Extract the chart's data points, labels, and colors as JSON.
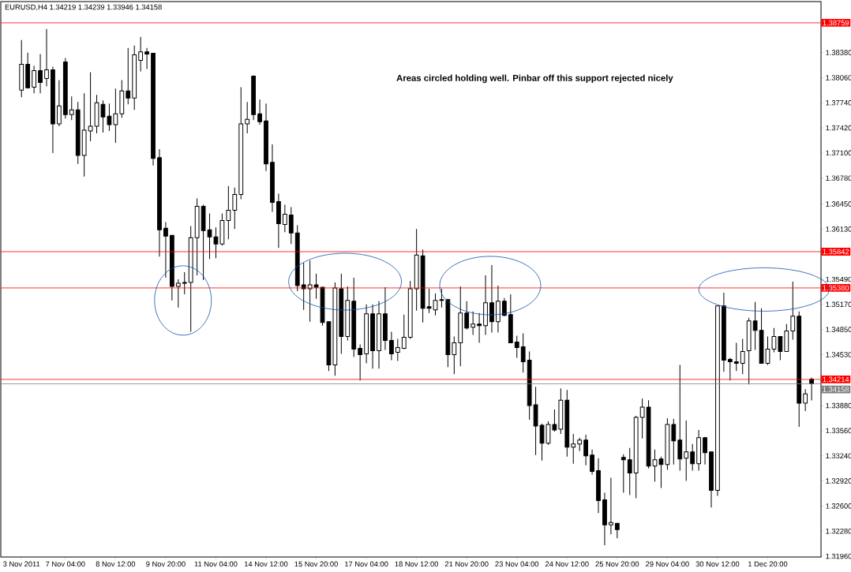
{
  "chart_data": {
    "type": "candlestick",
    "title": "EURUSD,H4  1.34219 1.34239 1.33946 1.34158",
    "annotations": [
      "Areas circled holding well.  Pinbar off this support rejected nicely"
    ],
    "color": "#000000",
    "categories": [
      "3 Nov 2011",
      null,
      null,
      null,
      null,
      null,
      null,
      "7 Nov 04:00",
      null,
      null,
      null,
      null,
      null,
      null,
      null,
      "8 Nov 12:00",
      null,
      null,
      null,
      null,
      null,
      null,
      null,
      "9 Nov 20:00",
      null,
      null,
      null,
      null,
      null,
      null,
      null,
      "11 Nov 04:00",
      null,
      null,
      null,
      null,
      null,
      null,
      null,
      "14 Nov 12:00",
      null,
      null,
      null,
      null,
      null,
      null,
      null,
      "15 Nov 20:00",
      null,
      null,
      null,
      null,
      null,
      null,
      null,
      "17 Nov 04:00",
      null,
      null,
      null,
      null,
      null,
      null,
      null,
      "18 Nov 12:00",
      null,
      null,
      null,
      null,
      null,
      null,
      null,
      "21 Nov 20:00",
      null,
      null,
      null,
      null,
      null,
      null,
      null,
      "23 Nov 04:00",
      null,
      null,
      null,
      null,
      null,
      null,
      null,
      "24 Nov 12:00",
      null,
      null,
      null,
      null,
      null,
      null,
      null,
      "25 Nov 20:00",
      null,
      null,
      null,
      null,
      null,
      null,
      null,
      "29 Nov 04:00",
      null,
      null,
      null,
      null,
      null,
      null,
      null,
      "30 Nov 12:00",
      null,
      null,
      null,
      null,
      null,
      null,
      null,
      "1 Dec 20:00",
      null,
      null,
      null,
      null,
      null,
      null,
      null
    ],
    "ohlc": [
      [
        1.379,
        1.3854,
        1.3781,
        1.3823
      ],
      [
        1.3823,
        1.3838,
        1.3792,
        1.3793
      ],
      [
        1.3794,
        1.3821,
        1.3786,
        1.3815
      ],
      [
        1.3815,
        1.3836,
        1.3786,
        1.38
      ],
      [
        1.3805,
        1.3868,
        1.3795,
        1.3816
      ],
      [
        1.3816,
        1.382,
        1.371,
        1.3747
      ],
      [
        1.3747,
        1.3803,
        1.3744,
        1.377
      ],
      [
        1.3826,
        1.3831,
        1.3754,
        1.3759
      ],
      [
        1.3759,
        1.3782,
        1.3752,
        1.3765
      ],
      [
        1.3765,
        1.3775,
        1.3696,
        1.3707
      ],
      [
        1.3707,
        1.3786,
        1.368,
        1.3739
      ],
      [
        1.3738,
        1.3813,
        1.3725,
        1.3744
      ],
      [
        1.3744,
        1.3784,
        1.3735,
        1.3774
      ],
      [
        1.3772,
        1.3777,
        1.3736,
        1.3756
      ],
      [
        1.3757,
        1.3773,
        1.3738,
        1.3746
      ],
      [
        1.3746,
        1.3792,
        1.3723,
        1.376
      ],
      [
        1.376,
        1.3803,
        1.3755,
        1.3789
      ],
      [
        1.3789,
        1.3844,
        1.3772,
        1.378
      ],
      [
        1.378,
        1.3847,
        1.3765,
        1.3835
      ],
      [
        1.3828,
        1.3858,
        1.3814,
        1.3839
      ],
      [
        1.3839,
        1.3844,
        1.3817,
        1.3836
      ],
      [
        1.3837,
        1.3837,
        1.3694,
        1.3703
      ],
      [
        1.3704,
        1.3715,
        1.3578,
        1.3612
      ],
      [
        1.3614,
        1.3622,
        1.3551,
        1.3604
      ],
      [
        1.3605,
        1.3605,
        1.3522,
        1.354
      ],
      [
        1.354,
        1.3549,
        1.3513,
        1.3544
      ],
      [
        1.3545,
        1.3558,
        1.353,
        1.3544
      ],
      [
        1.3545,
        1.3617,
        1.3482,
        1.3602
      ],
      [
        1.3602,
        1.3652,
        1.3554,
        1.3642
      ],
      [
        1.3642,
        1.3644,
        1.3548,
        1.3611
      ],
      [
        1.3612,
        1.3633,
        1.3575,
        1.3603
      ],
      [
        1.3603,
        1.3615,
        1.3576,
        1.3594
      ],
      [
        1.3594,
        1.3633,
        1.3592,
        1.3624
      ],
      [
        1.3624,
        1.3668,
        1.36,
        1.3637
      ],
      [
        1.3637,
        1.3666,
        1.3613,
        1.3657
      ],
      [
        1.3657,
        1.3794,
        1.3651,
        1.3747
      ],
      [
        1.3747,
        1.3775,
        1.3735,
        1.3753
      ],
      [
        1.3808,
        1.3809,
        1.3752,
        1.3759
      ],
      [
        1.376,
        1.3778,
        1.3746,
        1.375
      ],
      [
        1.3751,
        1.3773,
        1.3687,
        1.3696
      ],
      [
        1.3698,
        1.3721,
        1.3635,
        1.3647
      ],
      [
        1.3648,
        1.3658,
        1.3589,
        1.362
      ],
      [
        1.3619,
        1.3644,
        1.3609,
        1.3632
      ],
      [
        1.3631,
        1.3641,
        1.3594,
        1.3608
      ],
      [
        1.3608,
        1.3618,
        1.3534,
        1.3541
      ],
      [
        1.3542,
        1.357,
        1.351,
        1.3537
      ],
      [
        1.3537,
        1.3573,
        1.3495,
        1.3542
      ],
      [
        1.3542,
        1.3556,
        1.3524,
        1.3539
      ],
      [
        1.3539,
        1.3539,
        1.349,
        1.3494
      ],
      [
        1.3495,
        1.3495,
        1.3432,
        1.344
      ],
      [
        1.344,
        1.3545,
        1.3426,
        1.3538
      ],
      [
        1.3537,
        1.3556,
        1.3454,
        1.3476
      ],
      [
        1.3476,
        1.354,
        1.3471,
        1.3522
      ],
      [
        1.3521,
        1.3551,
        1.345,
        1.346
      ],
      [
        1.3461,
        1.3466,
        1.342,
        1.3453
      ],
      [
        1.3454,
        1.3517,
        1.3442,
        1.3505
      ],
      [
        1.3505,
        1.3517,
        1.3435,
        1.3458
      ],
      [
        1.3458,
        1.3521,
        1.3435,
        1.3505
      ],
      [
        1.3505,
        1.3539,
        1.3459,
        1.3471
      ],
      [
        1.3471,
        1.3482,
        1.3446,
        1.3454
      ],
      [
        1.3456,
        1.3473,
        1.3445,
        1.3462
      ],
      [
        1.3461,
        1.3504,
        1.346,
        1.3475
      ],
      [
        1.3475,
        1.3547,
        1.3473,
        1.3537
      ],
      [
        1.3537,
        1.3613,
        1.3509,
        1.358
      ],
      [
        1.3579,
        1.3587,
        1.3494,
        1.3512
      ],
      [
        1.3514,
        1.3537,
        1.3506,
        1.3512
      ],
      [
        1.351,
        1.3531,
        1.3503,
        1.3522
      ],
      [
        1.3523,
        1.3537,
        1.3513,
        1.3522
      ],
      [
        1.3523,
        1.3524,
        1.3437,
        1.3453
      ],
      [
        1.3453,
        1.3476,
        1.3428,
        1.3468
      ],
      [
        1.3468,
        1.354,
        1.3438,
        1.3506
      ],
      [
        1.3506,
        1.3521,
        1.3485,
        1.3487
      ],
      [
        1.3488,
        1.3508,
        1.3478,
        1.3492
      ],
      [
        1.3492,
        1.3506,
        1.3468,
        1.349
      ],
      [
        1.349,
        1.3554,
        1.3478,
        1.3519
      ],
      [
        1.3519,
        1.3567,
        1.3481,
        1.3495
      ],
      [
        1.3495,
        1.3541,
        1.3481,
        1.3521
      ],
      [
        1.3521,
        1.3525,
        1.3502,
        1.3503
      ],
      [
        1.3504,
        1.353,
        1.3468,
        1.3468
      ],
      [
        1.3469,
        1.3477,
        1.3449,
        1.3462
      ],
      [
        1.3463,
        1.348,
        1.343,
        1.3444
      ],
      [
        1.3446,
        1.3457,
        1.337,
        1.3388
      ],
      [
        1.3389,
        1.3412,
        1.3325,
        1.3362
      ],
      [
        1.3363,
        1.3365,
        1.3318,
        1.334
      ],
      [
        1.334,
        1.3368,
        1.3338,
        1.3364
      ],
      [
        1.3364,
        1.3383,
        1.3355,
        1.3357
      ],
      [
        1.3358,
        1.341,
        1.3352,
        1.3395
      ],
      [
        1.3395,
        1.3408,
        1.3323,
        1.3335
      ],
      [
        1.3335,
        1.3352,
        1.3314,
        1.3339
      ],
      [
        1.3339,
        1.3347,
        1.333,
        1.3344
      ],
      [
        1.3344,
        1.3351,
        1.3312,
        1.3324
      ],
      [
        1.3325,
        1.3332,
        1.33,
        1.3304
      ],
      [
        1.3305,
        1.3321,
        1.3251,
        1.3267
      ],
      [
        1.3268,
        1.3277,
        1.321,
        1.3236
      ],
      [
        1.3236,
        1.3296,
        1.3224,
        1.3239
      ],
      [
        1.3238,
        1.3238,
        1.3219,
        1.323
      ],
      [
        1.3322,
        1.3326,
        1.3277,
        1.3319
      ],
      [
        1.3319,
        1.3334,
        1.3274,
        1.3302
      ],
      [
        1.3302,
        1.3375,
        1.327,
        1.3373
      ],
      [
        1.3373,
        1.3397,
        1.3346,
        1.3386
      ],
      [
        1.3386,
        1.3395,
        1.3308,
        1.3311
      ],
      [
        1.3311,
        1.3332,
        1.3291,
        1.3319
      ],
      [
        1.332,
        1.3323,
        1.3283,
        1.3313
      ],
      [
        1.3313,
        1.3372,
        1.3306,
        1.3364
      ],
      [
        1.3364,
        1.3371,
        1.3313,
        1.3343
      ],
      [
        1.3344,
        1.344,
        1.3305,
        1.332
      ],
      [
        1.3321,
        1.3369,
        1.3292,
        1.3329
      ],
      [
        1.3329,
        1.3339,
        1.3305,
        1.3314
      ],
      [
        1.3314,
        1.3357,
        1.3305,
        1.3347
      ],
      [
        1.3347,
        1.3348,
        1.3313,
        1.3328
      ],
      [
        1.3329,
        1.3329,
        1.3258,
        1.328
      ],
      [
        1.328,
        1.3515,
        1.3273,
        1.3515
      ],
      [
        1.3515,
        1.3532,
        1.3431,
        1.3446
      ],
      [
        1.3447,
        1.3449,
        1.342,
        1.3444
      ],
      [
        1.3444,
        1.3468,
        1.3432,
        1.3442
      ],
      [
        1.3442,
        1.3473,
        1.3428,
        1.3457
      ],
      [
        1.3458,
        1.35,
        1.3415,
        1.3496
      ],
      [
        1.3496,
        1.352,
        1.3459,
        1.3484
      ],
      [
        1.3484,
        1.3512,
        1.3442,
        1.3442
      ],
      [
        1.3442,
        1.3476,
        1.344,
        1.346
      ],
      [
        1.346,
        1.3487,
        1.3456,
        1.3476
      ],
      [
        1.3476,
        1.3476,
        1.3446,
        1.3457
      ],
      [
        1.3457,
        1.3492,
        1.3457,
        1.3483
      ],
      [
        1.3483,
        1.3546,
        1.3472,
        1.3502
      ],
      [
        1.3502,
        1.3508,
        1.3361,
        1.3391
      ],
      [
        1.3391,
        1.3409,
        1.3381,
        1.3403
      ],
      [
        1.34219,
        1.34239,
        1.33946,
        1.34158
      ]
    ],
    "ylim": [
      1.3195,
      1.3903
    ],
    "yticks": [
      {
        "value": 1.3838,
        "label": "1.38380"
      },
      {
        "value": 1.3806,
        "label": "1.38060"
      },
      {
        "value": 1.3774,
        "label": "1.37740"
      },
      {
        "value": 1.3742,
        "label": "1.37420"
      },
      {
        "value": 1.371,
        "label": "1.37100"
      },
      {
        "value": 1.3678,
        "label": "1.36780"
      },
      {
        "value": 1.3645,
        "label": "1.36450"
      },
      {
        "value": 1.3613,
        "label": "1.36130"
      },
      {
        "value": 1.3549,
        "label": "1.35490"
      },
      {
        "value": 1.3517,
        "label": "1.35170"
      },
      {
        "value": 1.3485,
        "label": "1.34850"
      },
      {
        "value": 1.3453,
        "label": "1.34530"
      },
      {
        "value": 1.3388,
        "label": "1.33880"
      },
      {
        "value": 1.3356,
        "label": "1.33560"
      },
      {
        "value": 1.3324,
        "label": "1.33240"
      },
      {
        "value": 1.3292,
        "label": "1.32920"
      },
      {
        "value": 1.326,
        "label": "1.32600"
      },
      {
        "value": 1.3228,
        "label": "1.32280"
      },
      {
        "value": 1.3196,
        "label": "1.31960"
      }
    ],
    "ref_lines": [
      {
        "axis": "y",
        "value": 1.38759,
        "label": "1.38759",
        "color": "#ff0000"
      },
      {
        "axis": "y",
        "value": 1.35842,
        "label": "1.35842",
        "color": "#ff0000"
      },
      {
        "axis": "y",
        "value": 1.3538,
        "label": "1.35380",
        "color": "#ff0000"
      },
      {
        "axis": "y",
        "value": 1.34214,
        "label": "1.34214",
        "color": "#ff0000"
      },
      {
        "axis": "y",
        "value": 1.34158,
        "label": "1.34158",
        "color": "#808080"
      }
    ]
  }
}
